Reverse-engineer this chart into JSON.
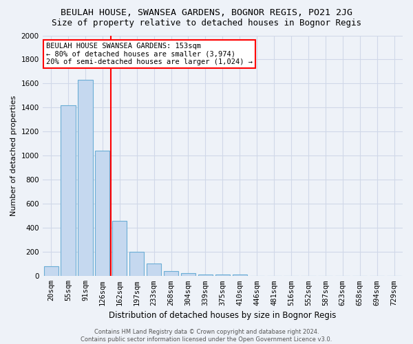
{
  "title": "BEULAH HOUSE, SWANSEA GARDENS, BOGNOR REGIS, PO21 2JG",
  "subtitle": "Size of property relative to detached houses in Bognor Regis",
  "xlabel": "Distribution of detached houses by size in Bognor Regis",
  "ylabel": "Number of detached properties",
  "categories": [
    "20sqm",
    "55sqm",
    "91sqm",
    "126sqm",
    "162sqm",
    "197sqm",
    "233sqm",
    "268sqm",
    "304sqm",
    "339sqm",
    "375sqm",
    "410sqm",
    "446sqm",
    "481sqm",
    "516sqm",
    "552sqm",
    "587sqm",
    "623sqm",
    "658sqm",
    "694sqm",
    "729sqm"
  ],
  "values": [
    80,
    1420,
    1630,
    1045,
    460,
    200,
    105,
    40,
    25,
    15,
    15,
    15,
    0,
    0,
    0,
    0,
    0,
    0,
    0,
    0,
    0
  ],
  "bar_color": "#c5d8ef",
  "bar_edge_color": "#6aadd5",
  "vline_color": "red",
  "vline_pos": 4,
  "annotation_text": "BEULAH HOUSE SWANSEA GARDENS: 153sqm\n← 80% of detached houses are smaller (3,974)\n20% of semi-detached houses are larger (1,024) →",
  "annotation_box_facecolor": "white",
  "annotation_box_edgecolor": "red",
  "footer": "Contains HM Land Registry data © Crown copyright and database right 2024.\nContains public sector information licensed under the Open Government Licence v3.0.",
  "ylim": [
    0,
    2000
  ],
  "yticks": [
    0,
    200,
    400,
    600,
    800,
    1000,
    1200,
    1400,
    1600,
    1800,
    2000
  ],
  "background_color": "#eef2f8",
  "grid_color": "#d0d8e8",
  "title_fontsize": 9.5,
  "subtitle_fontsize": 9,
  "axis_label_fontsize": 8,
  "tick_fontsize": 7.5,
  "annotation_fontsize": 7.5,
  "footer_fontsize": 6
}
